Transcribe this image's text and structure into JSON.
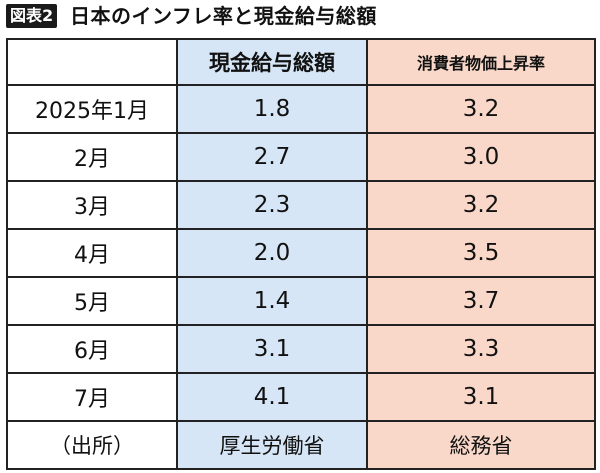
{
  "header": {
    "figure_label": "図表2",
    "title": "日本のインフレ率と現金給与総額"
  },
  "chart_data": {
    "type": "table",
    "title": "日本のインフレ率と現金給与総額",
    "columns": [
      "",
      "現金給与総額",
      "消費者物価上昇率"
    ],
    "rows": [
      {
        "label": "2025年1月",
        "wages": "1.8",
        "cpi": "3.2"
      },
      {
        "label": "2月",
        "wages": "2.7",
        "cpi": "3.0"
      },
      {
        "label": "3月",
        "wages": "2.3",
        "cpi": "3.2"
      },
      {
        "label": "4月",
        "wages": "2.0",
        "cpi": "3.5"
      },
      {
        "label": "5月",
        "wages": "1.4",
        "cpi": "3.7"
      },
      {
        "label": "6月",
        "wages": "3.1",
        "cpi": "3.3"
      },
      {
        "label": "7月",
        "wages": "4.1",
        "cpi": "3.1"
      }
    ],
    "source_row": {
      "label": "（出所）",
      "wages": "厚生労働省",
      "cpi": "総務省"
    }
  },
  "colors": {
    "wages_column_bg": "#d6e6f6",
    "cpi_column_bg": "#f9d8c9",
    "badge_bg": "#1a1a1a"
  }
}
